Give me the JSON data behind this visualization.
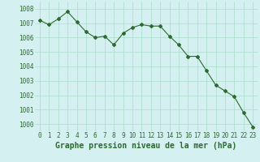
{
  "x": [
    0,
    1,
    2,
    3,
    4,
    5,
    6,
    7,
    8,
    9,
    10,
    11,
    12,
    13,
    14,
    15,
    16,
    17,
    18,
    19,
    20,
    21,
    22,
    23
  ],
  "y": [
    1007.2,
    1006.9,
    1007.3,
    1007.8,
    1007.1,
    1006.4,
    1006.0,
    1006.1,
    1005.5,
    1006.3,
    1006.7,
    1006.9,
    1006.8,
    1006.8,
    1006.1,
    1005.5,
    1004.7,
    1004.7,
    1003.7,
    1002.7,
    1002.3,
    1001.9,
    1000.8,
    999.8
  ],
  "line_color": "#2d6a2d",
  "marker": "D",
  "marker_size": 2,
  "bg_color": "#d4f0f0",
  "grid_color": "#aaddcc",
  "xlabel": "Graphe pression niveau de la mer (hPa)",
  "xlabel_fontsize": 7,
  "ylabel_ticks": [
    1000,
    1001,
    1002,
    1003,
    1004,
    1005,
    1006,
    1007,
    1008
  ],
  "xlim": [
    -0.5,
    23.5
  ],
  "ylim": [
    999.5,
    1008.5
  ],
  "xticks": [
    0,
    1,
    2,
    3,
    4,
    5,
    6,
    7,
    8,
    9,
    10,
    11,
    12,
    13,
    14,
    15,
    16,
    17,
    18,
    19,
    20,
    21,
    22,
    23
  ],
  "tick_fontsize": 5.5,
  "tick_color": "#2d6a2d"
}
